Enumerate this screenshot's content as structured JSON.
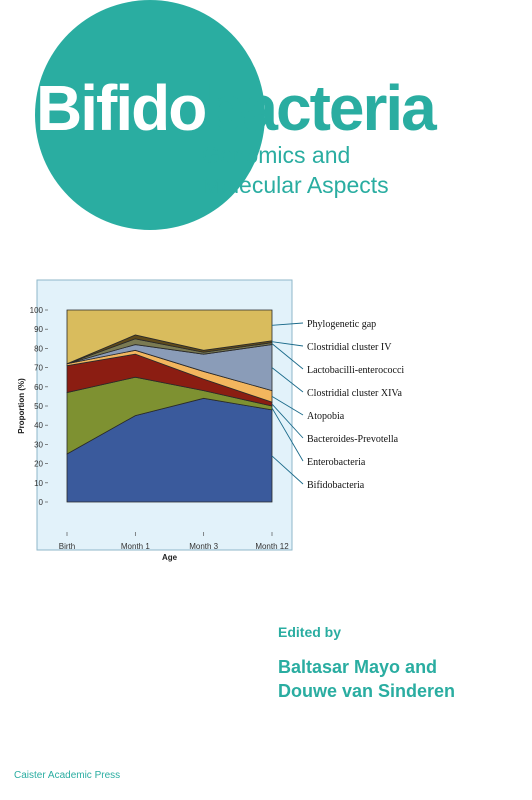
{
  "book": {
    "title_part1": "Bifido",
    "title_part2": "bacteria",
    "subtitle_line1": "Genomics and",
    "subtitle_line2": "Molecular Aspects",
    "edited_by": "Edited by",
    "editor1": "Baltasar Mayo and",
    "editor2": "Douwe van Sinderen",
    "publisher": "Caister Academic Press"
  },
  "colors": {
    "teal": "#2aada1",
    "chart_bg": "#e2f2fa"
  },
  "chart_data": {
    "type": "area",
    "stacked": true,
    "categories": [
      "Birth",
      "Month 1",
      "Month 3",
      "Month 12"
    ],
    "xlabel": "Age",
    "ylabel": "Proportion (%)",
    "ylim": [
      0,
      100
    ],
    "yticks": [
      0,
      10,
      20,
      30,
      40,
      50,
      60,
      70,
      80,
      90,
      100
    ],
    "series": [
      {
        "name": "Bifidobacteria",
        "color": "#3a5a9c",
        "values": [
          25,
          45,
          54,
          48
        ]
      },
      {
        "name": "Enterobacteria",
        "color": "#7e9131",
        "values": [
          32,
          20,
          4,
          2
        ]
      },
      {
        "name": "Bacteroides-Prevotella",
        "color": "#8b1d12",
        "values": [
          14,
          12,
          6,
          2
        ]
      },
      {
        "name": "Atopobia",
        "color": "#f3b65e",
        "values": [
          1,
          2,
          4,
          6
        ]
      },
      {
        "name": "Clostridial cluster XIVa",
        "color": "#8a9cb8",
        "values": [
          0,
          3,
          9,
          24
        ]
      },
      {
        "name": "Lactobacilli-enterococci",
        "color": "#7a7a52",
        "values": [
          0,
          3,
          1,
          1
        ]
      },
      {
        "name": "Clostridial cluster IV",
        "color": "#5e4a1a",
        "values": [
          0,
          2,
          1,
          1
        ]
      },
      {
        "name": "Phylogenetic gap",
        "color": "#d9bc5d",
        "values": [
          28,
          13,
          21,
          16
        ]
      }
    ],
    "legend": [
      "Phylogenetic gap",
      "Clostridial cluster IV",
      "Lactobacilli-enterococci",
      "Clostridial cluster XIVa",
      "Atopobia",
      "Bacteroides-Prevotella",
      "Enterobacteria",
      "Bifidobacteria"
    ],
    "legend_position": "right"
  }
}
